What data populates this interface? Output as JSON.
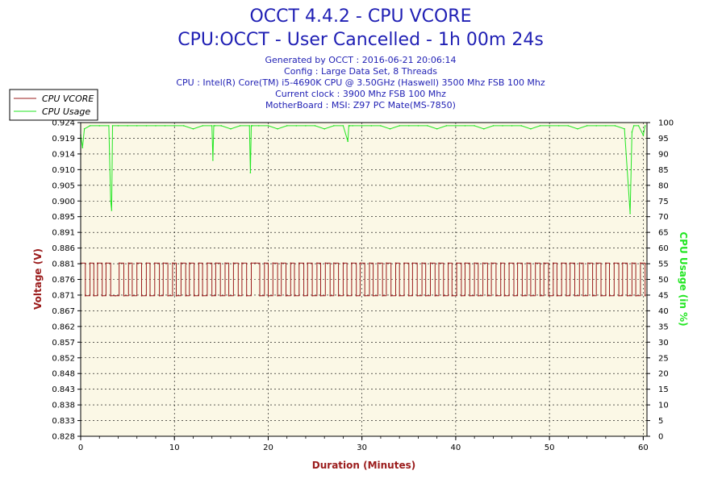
{
  "chart_data": {
    "type": "line",
    "title": "OCCT 4.4.2 - CPU VCORE",
    "subtitle": "CPU:OCCT - User Cancelled - 1h 00m 24s",
    "info_lines": [
      "Generated by OCCT : 2016-06-21 20:06:14",
      "Config : Large Data Set, 8 Threads",
      "CPU : Intel(R) Core(TM) i5-4690K CPU @ 3.50GHz (Haswell) 3500 Mhz FSB 100 Mhz",
      "Current clock : 3900 Mhz FSB 100 Mhz",
      "MotherBoard : MSI: Z97 PC Mate(MS-7850)"
    ],
    "xlabel": "Duration (Minutes)",
    "ylabel_left": "Voltage (V)",
    "ylabel_right": "CPU Usage (in %)",
    "xlim": [
      0,
      60.4
    ],
    "ylim_left": [
      0.828,
      0.924
    ],
    "ylim_right": [
      0,
      100
    ],
    "x_ticks": [
      "0",
      "10",
      "20",
      "30",
      "40",
      "50",
      "60"
    ],
    "y_left_ticks": [
      "0.828",
      "0.833",
      "0.838",
      "0.843",
      "0.848",
      "0.852",
      "0.857",
      "0.862",
      "0.867",
      "0.871",
      "0.876",
      "0.881",
      "0.886",
      "0.891",
      "0.895",
      "0.900",
      "0.905",
      "0.910",
      "0.914",
      "0.919",
      "0.924"
    ],
    "y_right_ticks": [
      "0",
      "5",
      "10",
      "15",
      "20",
      "25",
      "30",
      "35",
      "40",
      "45",
      "50",
      "55",
      "60",
      "65",
      "70",
      "75",
      "80",
      "85",
      "90",
      "95",
      "100"
    ],
    "legend": {
      "position": "top-left",
      "entries": [
        "CPU VCORE",
        "CPU Usage"
      ]
    },
    "grid": true,
    "series": [
      {
        "name": "CPU VCORE",
        "axis": "left",
        "color": "#9b1c1c",
        "levels": [
          0.871,
          0.881
        ],
        "x": [
          0.0,
          0.5,
          1.0,
          1.4,
          1.8,
          2.3,
          2.7,
          3.2,
          3.7,
          4.1,
          4.6,
          5.1,
          5.5,
          6.0,
          6.5,
          7.0,
          7.4,
          7.9,
          8.4,
          8.8,
          9.3,
          9.8,
          10.2,
          10.7,
          11.2,
          11.6,
          12.1,
          12.6,
          13.0,
          13.5,
          14.0,
          14.4,
          14.9,
          15.4,
          15.8,
          16.3,
          16.8,
          17.2,
          17.7,
          18.2,
          18.6,
          19.1,
          19.6,
          20.0,
          20.5,
          21.0,
          21.4,
          21.9,
          22.4,
          22.8,
          23.3,
          23.8,
          24.2,
          24.7,
          25.2,
          25.6,
          26.1,
          26.6,
          27.0,
          27.5,
          28.0,
          28.4,
          28.9,
          29.4,
          29.8,
          30.3,
          30.8,
          31.2,
          31.7,
          32.2,
          32.6,
          33.1,
          33.6,
          34.0,
          34.5,
          35.0,
          35.4,
          35.9,
          36.4,
          36.8,
          37.3,
          37.8,
          38.2,
          38.7,
          39.2,
          39.6,
          40.1,
          40.6,
          41.0,
          41.5,
          42.0,
          42.4,
          42.9,
          43.4,
          43.8,
          44.3,
          44.8,
          45.2,
          45.7,
          46.2,
          46.6,
          47.1,
          47.6,
          48.0,
          48.5,
          49.0,
          49.4,
          49.9,
          50.4,
          50.8,
          51.3,
          51.8,
          52.2,
          52.7,
          53.2,
          53.6,
          54.1,
          54.6,
          55.0,
          55.5,
          56.0,
          56.4,
          56.9,
          57.4,
          57.8,
          58.3,
          58.8,
          59.2,
          59.7,
          60.2
        ],
        "values": [
          0.881,
          0.871,
          0.881,
          0.871,
          0.881,
          0.871,
          0.881,
          0.871,
          0.871,
          0.881,
          0.871,
          0.881,
          0.871,
          0.881,
          0.871,
          0.881,
          0.871,
          0.881,
          0.871,
          0.881,
          0.871,
          0.881,
          0.871,
          0.881,
          0.871,
          0.881,
          0.871,
          0.881,
          0.871,
          0.881,
          0.871,
          0.881,
          0.871,
          0.881,
          0.871,
          0.881,
          0.871,
          0.881,
          0.871,
          0.881,
          0.881,
          0.871,
          0.881,
          0.871,
          0.881,
          0.871,
          0.881,
          0.871,
          0.881,
          0.871,
          0.881,
          0.871,
          0.881,
          0.871,
          0.881,
          0.871,
          0.881,
          0.871,
          0.881,
          0.871,
          0.881,
          0.871,
          0.881,
          0.871,
          0.881,
          0.871,
          0.881,
          0.871,
          0.881,
          0.871,
          0.881,
          0.871,
          0.881,
          0.871,
          0.881,
          0.871,
          0.881,
          0.871,
          0.881,
          0.871,
          0.881,
          0.871,
          0.881,
          0.871,
          0.881,
          0.871,
          0.881,
          0.871,
          0.881,
          0.871,
          0.881,
          0.871,
          0.881,
          0.871,
          0.881,
          0.871,
          0.881,
          0.871,
          0.881,
          0.871,
          0.881,
          0.871,
          0.881,
          0.871,
          0.881,
          0.871,
          0.881,
          0.871,
          0.881,
          0.871,
          0.881,
          0.871,
          0.881,
          0.871,
          0.881,
          0.871,
          0.881,
          0.871,
          0.881,
          0.871,
          0.881,
          0.871,
          0.881,
          0.871,
          0.881,
          0.871,
          0.881,
          0.871,
          0.881,
          0.871
        ]
      },
      {
        "name": "CPU Usage",
        "axis": "right",
        "color": "#22e622",
        "x": [
          0.0,
          0.2,
          0.4,
          1.0,
          2.0,
          3.0,
          3.2,
          3.3,
          3.4,
          4.0,
          5.0,
          6.0,
          7.0,
          8.0,
          9.0,
          10.0,
          11.0,
          12.0,
          13.0,
          14.0,
          14.1,
          14.2,
          14.3,
          15.0,
          16.0,
          17.0,
          18.0,
          18.1,
          18.2,
          18.3,
          19.0,
          20.0,
          21.0,
          22.0,
          23.0,
          24.0,
          25.0,
          26.0,
          27.0,
          28.0,
          28.5,
          28.6,
          28.7,
          29.0,
          30.0,
          31.0,
          32.0,
          33.0,
          34.0,
          35.0,
          36.0,
          37.0,
          38.0,
          39.0,
          40.0,
          41.0,
          42.0,
          43.0,
          44.0,
          45.0,
          46.0,
          47.0,
          48.0,
          49.0,
          50.0,
          51.0,
          52.0,
          53.0,
          54.0,
          55.0,
          56.0,
          57.0,
          58.0,
          58.4,
          58.6,
          58.8,
          59.0,
          59.5,
          60.0,
          60.2
        ],
        "values": [
          96,
          92,
          98,
          99,
          99,
          99,
          75,
          72,
          99,
          99,
          99,
          99,
          99,
          99,
          99,
          99,
          99,
          98,
          99,
          99,
          88,
          99,
          99,
          99,
          98,
          99,
          99,
          84,
          99,
          99,
          99,
          99,
          98,
          99,
          99,
          99,
          99,
          98,
          99,
          99,
          94,
          99,
          99,
          99,
          99,
          99,
          99,
          98,
          99,
          99,
          99,
          99,
          98,
          99,
          99,
          99,
          99,
          98,
          99,
          99,
          99,
          99,
          98,
          99,
          99,
          99,
          99,
          98,
          99,
          99,
          99,
          99,
          98,
          80,
          71,
          97,
          99,
          99,
          96,
          99
        ]
      }
    ]
  }
}
